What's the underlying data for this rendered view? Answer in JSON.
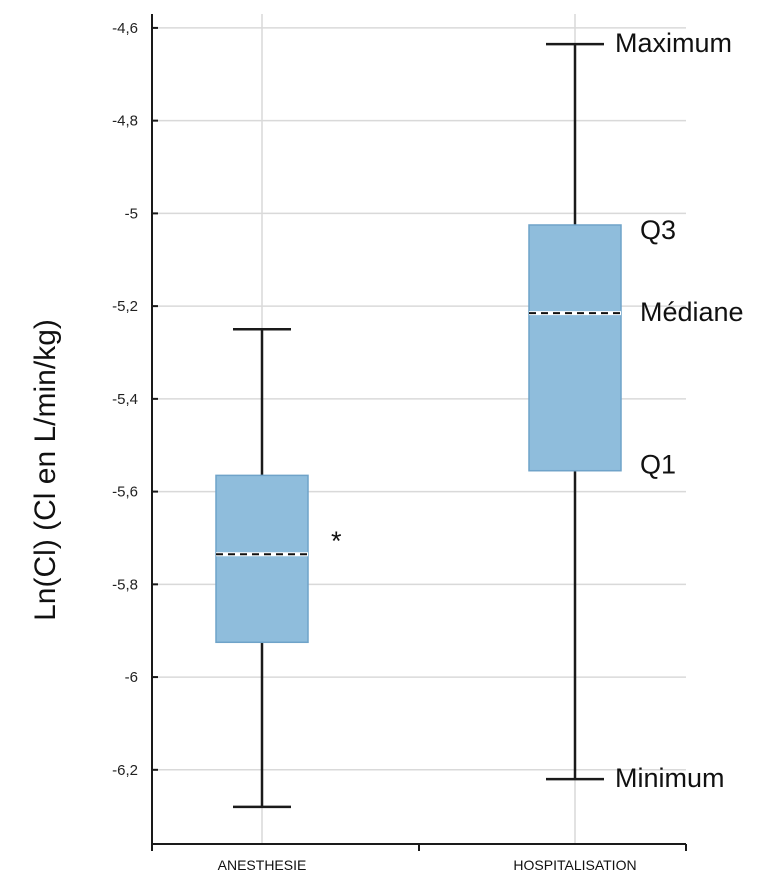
{
  "chart_data": {
    "type": "box",
    "ylabel": "Ln(Cl) (Cl en L/min/kg)",
    "ylim": [
      -6.36,
      -4.57
    ],
    "yticks": [
      -4.6,
      -4.8,
      -5,
      -5.2,
      -5.4,
      -5.6,
      -5.8,
      -6,
      -6.2
    ],
    "ytick_labels": [
      "-4,6",
      "-4,8",
      "-5",
      "-5,2",
      "-5,4",
      "-5,6",
      "-5,8",
      "-6",
      "-6,2"
    ],
    "grid": true,
    "categories": [
      "ANESTHESIE",
      "HOSPITALISATION"
    ],
    "boxes": [
      {
        "category": "ANESTHESIE",
        "min": -6.28,
        "q1": -5.925,
        "median": -5.735,
        "q3": -5.565,
        "max": -5.25,
        "marker": "*"
      },
      {
        "category": "HOSPITALISATION",
        "min": -6.22,
        "q1": -5.555,
        "median": -5.215,
        "q3": -5.025,
        "max": -4.635,
        "marker": ""
      }
    ],
    "annotations": {
      "max": "Maximum",
      "q3": "Q3",
      "median": "Médiane",
      "q1": "Q1",
      "min": "Minimum"
    }
  },
  "colors": {
    "box_fill": "#8fbddc",
    "box_stroke": "#6fa3c9",
    "whisker": "#1a1a1a",
    "grid": "#d9d9d9",
    "axis": "#1a1a1a"
  }
}
